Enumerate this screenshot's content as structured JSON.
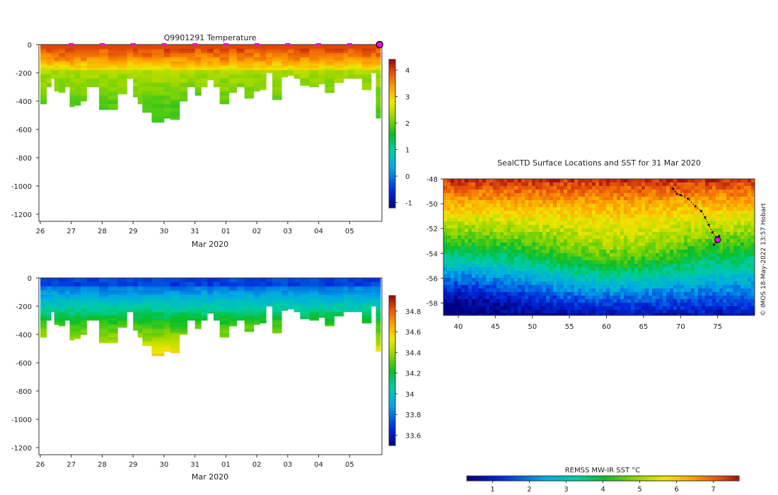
{
  "chart_data": [
    {
      "id": "temperature-section",
      "type": "heatmap",
      "title": "Q9901291  Temperature",
      "xlabel": "Mar 2020",
      "ylabel": "",
      "xticks": [
        "26",
        "27",
        "28",
        "29",
        "30",
        "31",
        "01",
        "02",
        "03",
        "04",
        "05"
      ],
      "yticks": [
        0,
        -200,
        -400,
        -600,
        -800,
        -1000,
        -1200
      ],
      "ylim": [
        -1250,
        0
      ],
      "colorbar": {
        "min": -1.2,
        "max": 4.4,
        "ticks": [
          -1,
          0,
          1,
          2,
          3,
          4
        ]
      },
      "profile_markers_at_day": [
        1,
        2,
        3,
        4,
        5,
        6,
        7,
        8,
        9,
        10,
        10.97
      ],
      "profiles": [
        {
          "d": 0.0,
          "z": 420
        },
        {
          "d": 0.2,
          "z": 300
        },
        {
          "d": 0.35,
          "z": 240
        },
        {
          "d": 0.45,
          "z": 330
        },
        {
          "d": 0.6,
          "z": 340
        },
        {
          "d": 0.8,
          "z": 300
        },
        {
          "d": 0.95,
          "z": 440
        },
        {
          "d": 1.1,
          "z": 430
        },
        {
          "d": 1.3,
          "z": 400
        },
        {
          "d": 1.5,
          "z": 300
        },
        {
          "d": 1.9,
          "z": 460
        },
        {
          "d": 2.2,
          "z": 460
        },
        {
          "d": 2.5,
          "z": 350
        },
        {
          "d": 2.8,
          "z": 240
        },
        {
          "d": 3.0,
          "z": 370
        },
        {
          "d": 3.15,
          "z": 420
        },
        {
          "d": 3.3,
          "z": 480
        },
        {
          "d": 3.6,
          "z": 550
        },
        {
          "d": 4.0,
          "z": 520
        },
        {
          "d": 4.2,
          "z": 530
        },
        {
          "d": 4.5,
          "z": 400
        },
        {
          "d": 4.75,
          "z": 300
        },
        {
          "d": 5.0,
          "z": 360
        },
        {
          "d": 5.2,
          "z": 300
        },
        {
          "d": 5.4,
          "z": 250
        },
        {
          "d": 5.6,
          "z": 300
        },
        {
          "d": 5.8,
          "z": 420
        },
        {
          "d": 6.1,
          "z": 340
        },
        {
          "d": 6.35,
          "z": 300
        },
        {
          "d": 6.6,
          "z": 380
        },
        {
          "d": 6.9,
          "z": 330
        },
        {
          "d": 7.1,
          "z": 320
        },
        {
          "d": 7.3,
          "z": 200
        },
        {
          "d": 7.5,
          "z": 390
        },
        {
          "d": 7.8,
          "z": 230
        },
        {
          "d": 8.0,
          "z": 220
        },
        {
          "d": 8.2,
          "z": 240
        },
        {
          "d": 8.4,
          "z": 290
        },
        {
          "d": 8.7,
          "z": 300
        },
        {
          "d": 9.0,
          "z": 280
        },
        {
          "d": 9.2,
          "z": 340
        },
        {
          "d": 9.5,
          "z": 270
        },
        {
          "d": 9.8,
          "z": 240
        },
        {
          "d": 9.95,
          "z": 240
        },
        {
          "d": 10.15,
          "z": 240
        },
        {
          "d": 10.4,
          "z": 320
        },
        {
          "d": 10.7,
          "z": 200
        },
        {
          "d": 10.85,
          "z": 520
        }
      ]
    },
    {
      "id": "salinity-section",
      "type": "heatmap",
      "title": "",
      "xlabel": "Mar 2020",
      "ylabel": "",
      "xticks": [
        "26",
        "27",
        "28",
        "29",
        "30",
        "31",
        "01",
        "02",
        "03",
        "04",
        "05"
      ],
      "yticks": [
        0,
        -200,
        -400,
        -600,
        -800,
        -1000,
        -1200
      ],
      "ylim": [
        -1250,
        0
      ],
      "colorbar": {
        "min": 33.5,
        "max": 34.95,
        "ticks": [
          "33.6",
          "33.8",
          "34",
          "34.2",
          "34.4",
          "34.6",
          "34.8"
        ]
      }
    },
    {
      "id": "sst-map",
      "type": "heatmap",
      "title": "SealCTD Surface Locations and SST for 31 Mar 2020",
      "xlabel": "",
      "ylabel": "",
      "xticks": [
        40,
        45,
        50,
        55,
        60,
        65,
        70,
        75
      ],
      "yticks": [
        -48,
        -50,
        -52,
        -54,
        -56,
        -58
      ],
      "xlim": [
        38,
        80
      ],
      "ylim": [
        -59,
        -48
      ],
      "colorbar": {
        "label": "REMSS MW-IR SST °C",
        "min": 0.3,
        "max": 7.7,
        "ticks": [
          1,
          2,
          3,
          4,
          5,
          6,
          7
        ]
      },
      "seal_track": [
        [
          69.0,
          -48.8
        ],
        [
          69.5,
          -49.2
        ],
        [
          70.0,
          -49.3
        ],
        [
          71.0,
          -49.6
        ],
        [
          72.0,
          -50.2
        ],
        [
          72.8,
          -50.6
        ],
        [
          73.3,
          -51.1
        ],
        [
          73.8,
          -51.7
        ],
        [
          74.3,
          -52.3
        ],
        [
          74.8,
          -52.7
        ],
        [
          75.2,
          -52.6
        ],
        [
          74.5,
          -53.3
        ],
        [
          75.0,
          -53.0
        ]
      ],
      "current_position": [
        75.0,
        -52.9
      ],
      "credit": "© IMOS 18-May-2022 13:57 Hobart"
    }
  ],
  "colors": {
    "marker": "#ff00ff",
    "axis": "#333333"
  }
}
